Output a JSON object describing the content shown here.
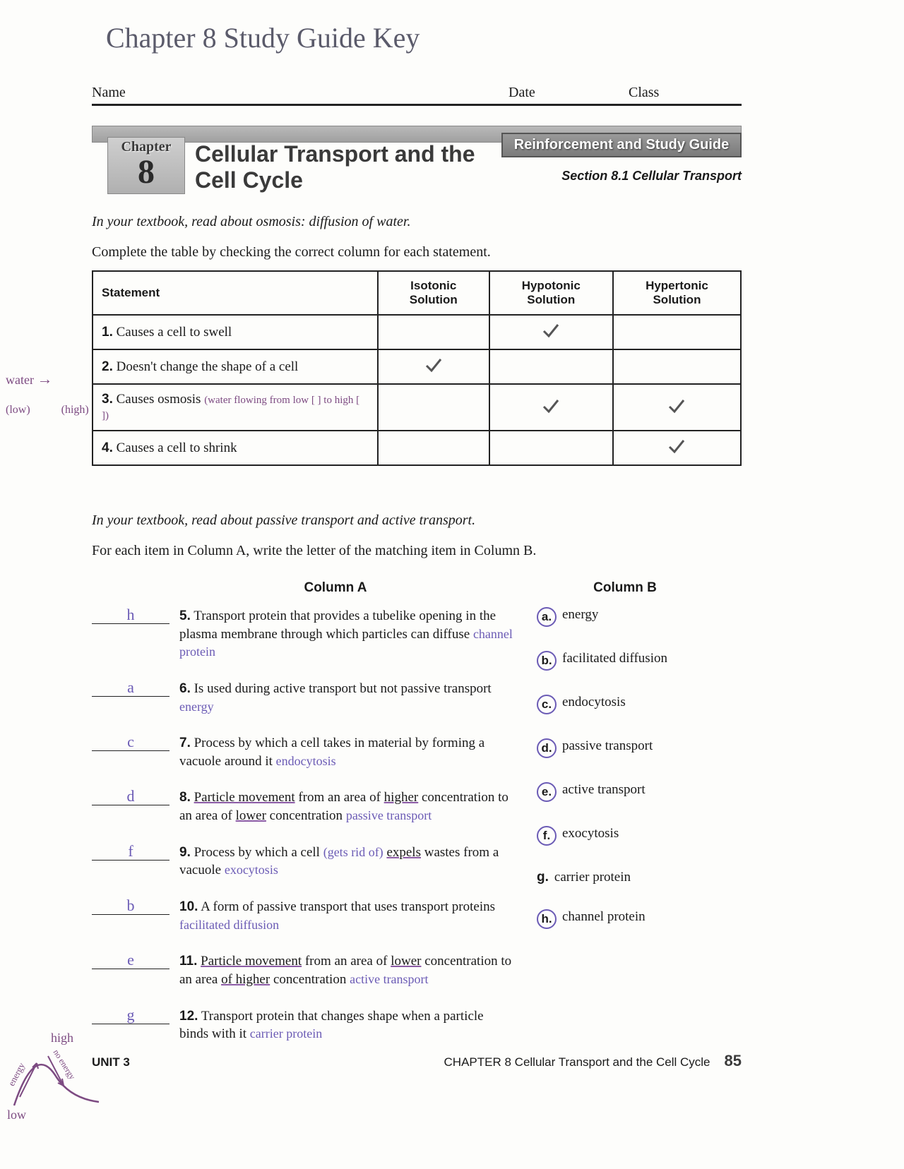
{
  "handwritten_title": "Chapter 8 Study Guide  Key",
  "header": {
    "name_label": "Name",
    "date_label": "Date",
    "class_label": "Class"
  },
  "chapter": {
    "badge_label": "Chapter",
    "number": "8",
    "title": "Cellular Transport and the Cell Cycle",
    "box_label": "Reinforcement and Study Guide",
    "section_label": "Section 8.1 Cellular Transport"
  },
  "osmosis": {
    "intro": "In your textbook, read about osmosis: diffusion of water.",
    "instruction": "Complete the table by checking the correct column for each statement.",
    "columns": [
      "Statement",
      "Isotonic Solution",
      "Hypotonic Solution",
      "Hypertonic Solution"
    ],
    "rows": [
      {
        "num": "1.",
        "text": "Causes a cell to swell",
        "checks": [
          false,
          true,
          false
        ],
        "note": ""
      },
      {
        "num": "2.",
        "text": "Doesn't change the shape of a cell",
        "checks": [
          true,
          false,
          false
        ],
        "note": ""
      },
      {
        "num": "3.",
        "text": "Causes osmosis",
        "checks": [
          false,
          true,
          true
        ],
        "note": "(water flowing from low [ ] to high [ ])"
      },
      {
        "num": "4.",
        "text": "Causes a cell to shrink",
        "checks": [
          false,
          false,
          true
        ],
        "note": ""
      }
    ]
  },
  "water_annotation": {
    "label": "water",
    "arrow": "→",
    "low": "(low)",
    "high": "(high)"
  },
  "matching": {
    "intro": "In your textbook, read about passive transport and active transport.",
    "instruction": "For each item in Column A, write the letter of the matching item in Column B.",
    "col_a_label": "Column A",
    "col_b_label": "Column B",
    "items": [
      {
        "answer": "h",
        "num": "5.",
        "text": "Transport protein that provides a tubelike opening in the plasma membrane through which particles can diffuse",
        "written": "channel protein"
      },
      {
        "answer": "a",
        "num": "6.",
        "text": "Is used during active transport but not passive transport",
        "written": "energy"
      },
      {
        "answer": "c",
        "num": "7.",
        "text": "Process by which a cell takes in material by forming a vacuole around it",
        "written": "endocytosis"
      },
      {
        "answer": "d",
        "num": "8.",
        "text_html": "<span class='ul'>Particle movement</span> from an area of <span class='ul'>higher</span> concentration to an area of <span class='ul'>lower</span> concentration",
        "written": "passive transport"
      },
      {
        "answer": "f",
        "num": "9.",
        "text_html": "Process by which a cell <span class='written'>(gets rid of)</span> <span class='ul'>expels</span> wastes from a vacuole",
        "written": "exocytosis"
      },
      {
        "answer": "b",
        "num": "10.",
        "text": "A form of passive transport that uses transport proteins",
        "written": "facilitated diffusion"
      },
      {
        "answer": "e",
        "num": "11.",
        "text_html": "<span class='ul'>Particle movement</span> from an area of <span class='ul'>lower</span> concentration to an area <span class='ul'>of higher</span> concentration",
        "written": "active transport"
      },
      {
        "answer": "g",
        "num": "12.",
        "text": "Transport protein that changes shape when a particle binds with it",
        "written": "carrier protein"
      }
    ],
    "col_b": [
      {
        "letter": "a.",
        "text": "energy",
        "circled": true
      },
      {
        "letter": "b.",
        "text": "facilitated diffusion",
        "circled": true
      },
      {
        "letter": "c.",
        "text": "endocytosis",
        "circled": true
      },
      {
        "letter": "d.",
        "text": "passive transport",
        "circled": true
      },
      {
        "letter": "e.",
        "text": "active transport",
        "circled": true
      },
      {
        "letter": "f.",
        "text": "exocytosis",
        "circled": true
      },
      {
        "letter": "g.",
        "text": "carrier protein",
        "circled": false
      },
      {
        "letter": "h.",
        "text": "channel protein",
        "circled": true
      }
    ]
  },
  "footer": {
    "unit": "UNIT 3",
    "chapter_text": "CHAPTER 8   Cellular Transport and the Cell Cycle",
    "page": "85"
  },
  "bottom_sketch": {
    "high": "high",
    "low": "low",
    "energy": "energy",
    "no_energy": "no energy"
  },
  "colors": {
    "handwriting": "#6b5bb5",
    "purple": "#7d4b82",
    "ink": "#1a1a1a",
    "grey_bar": "#a9a9a9"
  }
}
